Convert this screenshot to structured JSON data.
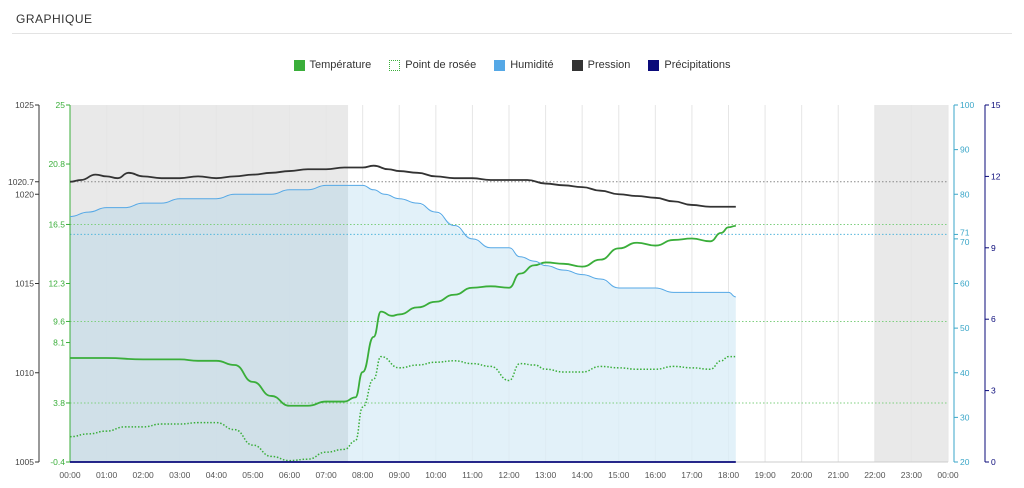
{
  "panel": {
    "title": "GRAPHIQUE"
  },
  "legend": [
    {
      "label": "Température",
      "color": "#3aae3a",
      "style": "solid"
    },
    {
      "label": "Point de rosée",
      "color": "#3aae3a",
      "style": "dotted"
    },
    {
      "label": "Humidité",
      "color": "#55a8e6",
      "style": "solid"
    },
    {
      "label": "Pression",
      "color": "#333333",
      "style": "solid"
    },
    {
      "label": "Précipitations",
      "color": "#0a0a7a",
      "style": "solid"
    }
  ],
  "chart_data": {
    "type": "line",
    "x_ticks": [
      "00:00",
      "01:00",
      "02:00",
      "03:00",
      "04:00",
      "05:00",
      "06:00",
      "07:00",
      "08:00",
      "09:00",
      "10:00",
      "11:00",
      "12:00",
      "13:00",
      "14:00",
      "15:00",
      "16:00",
      "17:00",
      "18:00",
      "19:00",
      "20:00",
      "21:00",
      "22:00",
      "23:00",
      "00:00"
    ],
    "x_range_hours": [
      0,
      24
    ],
    "night_bands_hours": [
      [
        0,
        7.6
      ],
      [
        22,
        24
      ]
    ],
    "axes": {
      "pressure": {
        "range": [
          1005,
          1025
        ],
        "ticks": [
          "1005",
          "1010",
          "1015",
          "1020",
          "1020.7",
          "1025"
        ],
        "color": "#333333"
      },
      "temperature": {
        "range": [
          -0.4,
          25
        ],
        "ticks": [
          "-0.4",
          "3.8",
          "8.1",
          "9.6",
          "12.3",
          "16.5",
          "20.8",
          "25"
        ],
        "color": "#3aae3a"
      },
      "humidity": {
        "range": [
          20,
          100
        ],
        "ticks": [
          "20",
          "30",
          "40",
          "50",
          "60",
          "70",
          "71",
          "80",
          "90",
          "100"
        ],
        "color": "#3aa6c8"
      },
      "precipitation": {
        "range": [
          0,
          15
        ],
        "ticks": [
          "0",
          "3",
          "6",
          "9",
          "12",
          "15"
        ],
        "color": "#0a0a7a"
      }
    },
    "reference_lines": [
      {
        "axis": "pressure",
        "value": 1020.7,
        "label": "1020.7"
      },
      {
        "axis": "temperature",
        "value": 16.5,
        "label": "16.5"
      },
      {
        "axis": "temperature",
        "value": 9.6,
        "label": "9.6"
      },
      {
        "axis": "temperature",
        "value": 3.8,
        "label": "3.8"
      },
      {
        "axis": "humidity",
        "value": 71,
        "label": "71"
      }
    ],
    "series": [
      {
        "name": "Température",
        "axis": "temperature",
        "color": "#3aae3a",
        "points": [
          [
            0,
            7.0
          ],
          [
            1,
            7.0
          ],
          [
            2,
            6.9
          ],
          [
            3,
            6.9
          ],
          [
            3.5,
            6.8
          ],
          [
            4,
            6.8
          ],
          [
            4.5,
            6.5
          ],
          [
            5,
            5.3
          ],
          [
            5.5,
            4.3
          ],
          [
            6,
            3.6
          ],
          [
            6.5,
            3.6
          ],
          [
            7,
            3.9
          ],
          [
            7.5,
            3.9
          ],
          [
            7.8,
            4.2
          ],
          [
            8,
            6.0
          ],
          [
            8.3,
            8.5
          ],
          [
            8.5,
            10.3
          ],
          [
            8.8,
            10.0
          ],
          [
            9,
            10.1
          ],
          [
            9.5,
            10.6
          ],
          [
            10,
            11.0
          ],
          [
            10.5,
            11.5
          ],
          [
            11,
            12.0
          ],
          [
            11.5,
            12.1
          ],
          [
            12,
            12.0
          ],
          [
            12.3,
            13.0
          ],
          [
            12.7,
            13.6
          ],
          [
            13,
            13.8
          ],
          [
            13.5,
            13.7
          ],
          [
            14,
            13.5
          ],
          [
            14.5,
            14.0
          ],
          [
            15,
            14.8
          ],
          [
            15.5,
            15.2
          ],
          [
            16,
            15.0
          ],
          [
            16.5,
            15.4
          ],
          [
            17,
            15.5
          ],
          [
            17.5,
            15.3
          ],
          [
            17.8,
            15.9
          ],
          [
            18,
            16.3
          ],
          [
            18.2,
            16.4
          ]
        ]
      },
      {
        "name": "Point de rosée",
        "axis": "temperature",
        "color": "#3aae3a",
        "dotted": true,
        "points": [
          [
            0,
            1.4
          ],
          [
            0.5,
            1.6
          ],
          [
            1,
            1.8
          ],
          [
            1.5,
            2.1
          ],
          [
            2,
            2.1
          ],
          [
            2.5,
            2.3
          ],
          [
            3,
            2.3
          ],
          [
            3.5,
            2.4
          ],
          [
            4,
            2.4
          ],
          [
            4.5,
            1.9
          ],
          [
            5,
            0.8
          ],
          [
            5.5,
            0.0
          ],
          [
            6,
            -0.3
          ],
          [
            6.5,
            -0.2
          ],
          [
            7,
            0.3
          ],
          [
            7.5,
            0.5
          ],
          [
            7.8,
            1.1
          ],
          [
            8,
            3.5
          ],
          [
            8.3,
            5.5
          ],
          [
            8.5,
            7.1
          ],
          [
            9,
            6.3
          ],
          [
            9.5,
            6.5
          ],
          [
            10,
            6.7
          ],
          [
            10.5,
            6.8
          ],
          [
            11,
            6.6
          ],
          [
            11.5,
            6.4
          ],
          [
            12,
            5.4
          ],
          [
            12.3,
            6.6
          ],
          [
            12.7,
            6.5
          ],
          [
            13,
            6.2
          ],
          [
            13.5,
            6.0
          ],
          [
            14,
            6.0
          ],
          [
            14.5,
            6.4
          ],
          [
            15,
            6.3
          ],
          [
            15.5,
            6.2
          ],
          [
            16,
            6.2
          ],
          [
            16.5,
            6.4
          ],
          [
            17,
            6.3
          ],
          [
            17.5,
            6.2
          ],
          [
            17.8,
            6.8
          ],
          [
            18,
            7.1
          ],
          [
            18.2,
            7.1
          ]
        ]
      },
      {
        "name": "Humidité",
        "axis": "humidity",
        "color": "#55a8e6",
        "fill": "#dbeef7",
        "points": [
          [
            0,
            75
          ],
          [
            0.5,
            76
          ],
          [
            1,
            77
          ],
          [
            1.5,
            77
          ],
          [
            2,
            78
          ],
          [
            2.5,
            78
          ],
          [
            3,
            79
          ],
          [
            3.5,
            79
          ],
          [
            4,
            79
          ],
          [
            4.5,
            80
          ],
          [
            5,
            80
          ],
          [
            5.5,
            80
          ],
          [
            6,
            81
          ],
          [
            6.5,
            81
          ],
          [
            7,
            82
          ],
          [
            7.5,
            82
          ],
          [
            8,
            82
          ],
          [
            8.3,
            81
          ],
          [
            8.6,
            80
          ],
          [
            9,
            79
          ],
          [
            9.5,
            78
          ],
          [
            10,
            76
          ],
          [
            10.5,
            73
          ],
          [
            11,
            70
          ],
          [
            11.5,
            68
          ],
          [
            12,
            68
          ],
          [
            12.3,
            66
          ],
          [
            12.7,
            65
          ],
          [
            13,
            64
          ],
          [
            13.5,
            63
          ],
          [
            14,
            62
          ],
          [
            14.5,
            61
          ],
          [
            15,
            59
          ],
          [
            15.5,
            59
          ],
          [
            16,
            59
          ],
          [
            16.5,
            58
          ],
          [
            17,
            58
          ],
          [
            17.5,
            58
          ],
          [
            18,
            58
          ],
          [
            18.2,
            57
          ]
        ]
      },
      {
        "name": "Pression",
        "axis": "pressure",
        "color": "#333333",
        "points": [
          [
            0,
            1020.7
          ],
          [
            0.3,
            1020.8
          ],
          [
            0.7,
            1021.1
          ],
          [
            1,
            1021.0
          ],
          [
            1.3,
            1020.9
          ],
          [
            1.6,
            1021.2
          ],
          [
            2,
            1021.0
          ],
          [
            2.5,
            1020.9
          ],
          [
            3,
            1020.9
          ],
          [
            3.5,
            1021.0
          ],
          [
            4,
            1020.9
          ],
          [
            4.5,
            1021.0
          ],
          [
            5,
            1021.1
          ],
          [
            5.5,
            1021.2
          ],
          [
            6,
            1021.3
          ],
          [
            6.5,
            1021.4
          ],
          [
            7,
            1021.4
          ],
          [
            7.5,
            1021.5
          ],
          [
            8,
            1021.5
          ],
          [
            8.3,
            1021.6
          ],
          [
            8.7,
            1021.4
          ],
          [
            9,
            1021.3
          ],
          [
            9.5,
            1021.2
          ],
          [
            10,
            1021.0
          ],
          [
            10.5,
            1020.9
          ],
          [
            11,
            1020.9
          ],
          [
            11.5,
            1020.8
          ],
          [
            12,
            1020.8
          ],
          [
            12.5,
            1020.8
          ],
          [
            13,
            1020.6
          ],
          [
            13.5,
            1020.5
          ],
          [
            14,
            1020.4
          ],
          [
            14.5,
            1020.2
          ],
          [
            15,
            1020.0
          ],
          [
            15.5,
            1019.9
          ],
          [
            16,
            1019.8
          ],
          [
            16.5,
            1019.6
          ],
          [
            17,
            1019.4
          ],
          [
            17.5,
            1019.3
          ],
          [
            18,
            1019.3
          ],
          [
            18.2,
            1019.3
          ]
        ]
      },
      {
        "name": "Précipitations",
        "axis": "precipitation",
        "color": "#0a0a7a",
        "points": [
          [
            0,
            0
          ],
          [
            18.2,
            0
          ]
        ]
      }
    ]
  }
}
